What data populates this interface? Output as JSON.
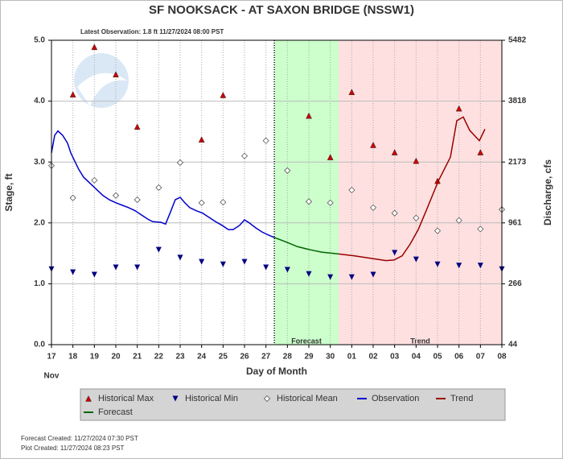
{
  "chart_data": {
    "type": "line",
    "title": "SF NOOKSACK - AT SAXON BRIDGE  (NSSW1)",
    "subtitle": "Latest Observation: 1.8 ft 11/27/2024 08:00 PST",
    "x_label": "Day of Month",
    "x_month": "Nov",
    "y_label": "Stage, ft",
    "y2_label": "Discharge, cfs",
    "xlim": [
      0,
      21
    ],
    "xticks": [
      {
        "value": 0,
        "label": "17"
      },
      {
        "value": 1,
        "label": "18"
      },
      {
        "value": 2,
        "label": "19"
      },
      {
        "value": 3,
        "label": "20"
      },
      {
        "value": 4,
        "label": "21"
      },
      {
        "value": 5,
        "label": "22"
      },
      {
        "value": 6,
        "label": "23"
      },
      {
        "value": 7,
        "label": "24"
      },
      {
        "value": 8,
        "label": "25"
      },
      {
        "value": 9,
        "label": "26"
      },
      {
        "value": 10,
        "label": "27"
      },
      {
        "value": 11,
        "label": "28"
      },
      {
        "value": 12,
        "label": "29"
      },
      {
        "value": 13,
        "label": "30"
      },
      {
        "value": 14,
        "label": "01"
      },
      {
        "value": 15,
        "label": "02"
      },
      {
        "value": 16,
        "label": "03"
      },
      {
        "value": 17,
        "label": "04"
      },
      {
        "value": 18,
        "label": "05"
      },
      {
        "value": 19,
        "label": "06"
      },
      {
        "value": 20,
        "label": "07"
      },
      {
        "value": 21,
        "label": "08"
      }
    ],
    "ylim": [
      0,
      5
    ],
    "yticks": [
      {
        "value": 0,
        "label": "0.0"
      },
      {
        "value": 1,
        "label": "1.0"
      },
      {
        "value": 2,
        "label": "2.0"
      },
      {
        "value": 3,
        "label": "3.0"
      },
      {
        "value": 4,
        "label": "4.0"
      },
      {
        "value": 5,
        "label": "5.0"
      }
    ],
    "y2ticks": [
      44,
      266,
      961,
      2173,
      3818,
      5482
    ],
    "grid": true,
    "legend": "bottom",
    "latest_observation_x": 10.39,
    "regions": [
      {
        "label": "Forecast",
        "x": [
          10.39,
          13.39
        ],
        "color": "#ccffcc"
      },
      {
        "label": "Trend",
        "x": [
          13.39,
          21
        ],
        "color": "#ffe0e0"
      }
    ],
    "series": [
      {
        "name": "Historical Max",
        "style": "triangle-up",
        "color": "#cc0000",
        "values": [
          null,
          4.11,
          4.89,
          4.44,
          3.58,
          null,
          null,
          3.37,
          4.1,
          null,
          null,
          null,
          3.76,
          3.08,
          4.15,
          3.28,
          3.16,
          3.02,
          2.69,
          3.88,
          3.16,
          null
        ]
      },
      {
        "name": "Historical Min",
        "style": "triangle-down",
        "color": "#000080",
        "values": [
          1.24,
          1.19,
          1.15,
          1.27,
          1.27,
          1.56,
          1.43,
          1.36,
          1.32,
          1.36,
          1.27,
          1.23,
          1.16,
          1.11,
          1.11,
          1.15,
          1.51,
          1.4,
          1.32,
          1.3,
          1.3,
          1.24
        ]
      },
      {
        "name": "Historical Mean",
        "style": "diamond",
        "color": "#555555",
        "values": [
          2.94,
          2.41,
          2.7,
          2.45,
          2.38,
          2.58,
          2.99,
          2.33,
          2.34,
          3.1,
          3.35,
          2.86,
          2.35,
          2.33,
          2.54,
          2.25,
          2.16,
          2.08,
          1.87,
          2.04,
          1.9,
          2.22
        ]
      },
      {
        "name": "Observation",
        "style": "line",
        "color": "#0000cc",
        "x": [
          0.0,
          0.15,
          0.3,
          0.52,
          0.75,
          0.9,
          1.05,
          1.27,
          1.5,
          1.8,
          2.1,
          2.4,
          2.7,
          3.0,
          3.3,
          3.6,
          3.9,
          4.2,
          4.5,
          4.72,
          5.1,
          5.32,
          5.55,
          5.77,
          6.0,
          6.22,
          6.45,
          6.75,
          7.05,
          7.35,
          7.65,
          7.95,
          8.25,
          8.47,
          8.77,
          9.0,
          9.22,
          9.52,
          9.82,
          10.12,
          10.39
        ],
        "values": [
          3.15,
          3.44,
          3.51,
          3.44,
          3.31,
          3.15,
          3.04,
          2.88,
          2.75,
          2.65,
          2.55,
          2.45,
          2.38,
          2.33,
          2.29,
          2.25,
          2.2,
          2.13,
          2.06,
          2.02,
          2.01,
          1.98,
          2.18,
          2.38,
          2.42,
          2.33,
          2.25,
          2.2,
          2.16,
          2.09,
          2.02,
          1.96,
          1.89,
          1.89,
          1.96,
          2.05,
          2.0,
          1.92,
          1.85,
          1.8,
          1.76
        ]
      },
      {
        "name": "Trend",
        "style": "line",
        "color": "#990000",
        "x": [
          13.39,
          14.1,
          14.85,
          15.6,
          15.97,
          16.35,
          16.72,
          17.1,
          17.47,
          18.04,
          18.6,
          18.9,
          19.2,
          19.5,
          19.95,
          20.21
        ],
        "values": [
          1.49,
          1.46,
          1.42,
          1.38,
          1.39,
          1.46,
          1.65,
          1.89,
          2.2,
          2.69,
          3.08,
          3.68,
          3.74,
          3.52,
          3.35,
          3.54
        ]
      },
      {
        "name": "Forecast",
        "style": "line",
        "color": "#006600",
        "x": [
          10.39,
          10.91,
          11.47,
          12.04,
          12.6,
          13.39
        ],
        "values": [
          1.76,
          1.69,
          1.61,
          1.56,
          1.52,
          1.49
        ]
      }
    ],
    "footer": [
      "Forecast Created: 11/27/2024 07:30 PST",
      "Plot Created: 11/27/2024 08:23 PST"
    ]
  }
}
